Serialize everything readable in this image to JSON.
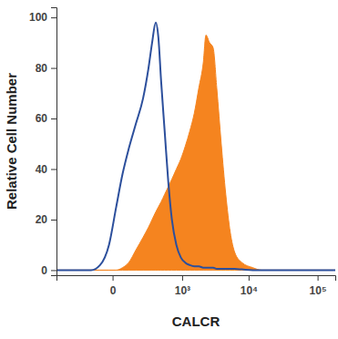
{
  "chart_data": {
    "type": "line",
    "x_label": "CALCR",
    "y_label": "Relative Cell Number",
    "x": [
      -600,
      -115,
      -57,
      -14,
      14,
      43,
      78,
      129,
      193,
      253,
      299,
      351,
      394,
      441,
      511,
      590,
      679,
      806,
      954,
      1120,
      1320,
      1550,
      1820,
      2130,
      2340,
      2650,
      3000,
      3400,
      3960,
      4620,
      5380,
      6270,
      8000,
      11500,
      15500,
      21000,
      180000
    ],
    "series": [
      {
        "type": "line",
        "color": "#2c4f9c",
        "values": [
          0,
          0,
          2,
          10,
          25,
          38,
          48,
          58,
          68,
          80,
          90,
          98,
          92,
          75,
          55,
          35,
          20,
          10,
          5,
          3,
          2,
          1.5,
          1.5,
          1,
          1,
          1,
          1,
          0.5,
          0.5,
          0.5,
          0.5,
          0.5,
          0.3,
          0,
          0,
          0,
          0
        ]
      },
      {
        "type": "area",
        "color": "#f5841f",
        "values": [
          0,
          0,
          0,
          0,
          0,
          1,
          3,
          8,
          13,
          17,
          20,
          23,
          25,
          27,
          30,
          33,
          36,
          40,
          44,
          49,
          55,
          62,
          72,
          82,
          93,
          90,
          88,
          72,
          50,
          30,
          15,
          7,
          3,
          1,
          0,
          0,
          0
        ]
      }
    ],
    "xlim": [
      -600,
      180000
    ],
    "ylim": [
      -2,
      104
    ],
    "xticks": [
      0,
      {
        "value": 1000,
        "label": "10³"
      },
      {
        "value": 10000,
        "label": "10⁴"
      },
      {
        "value": 100000,
        "label": "10⁵"
      }
    ],
    "yticks": [
      0,
      20,
      40,
      60,
      80,
      100
    ],
    "log": "x"
  }
}
